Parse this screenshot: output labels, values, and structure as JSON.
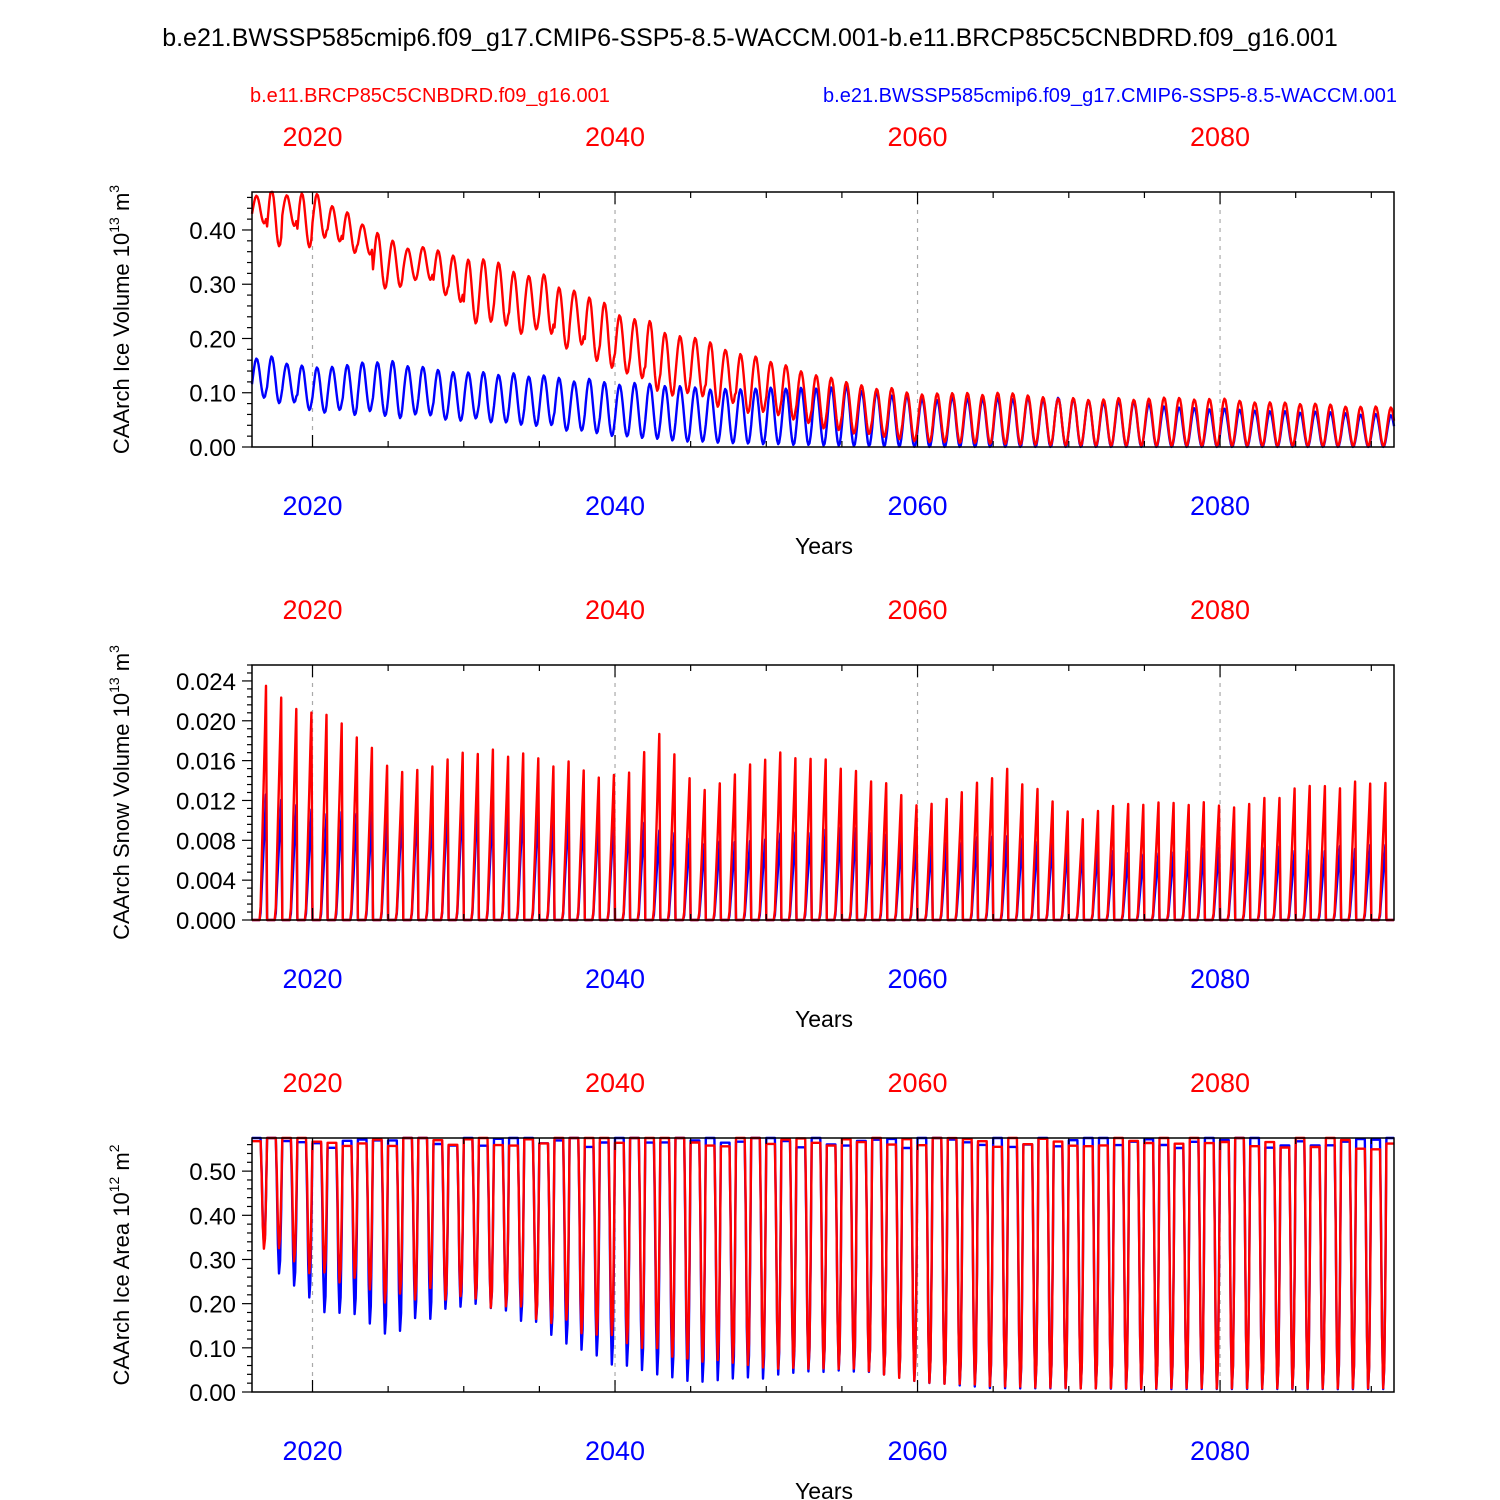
{
  "page": {
    "title": "b.e21.BWSSP585cmip6.f09_g17.CMIP6-SSP5-8.5-WACCM.001-b.e11.BRCP85C5CNBDRD.f09_g16.001"
  },
  "colors": {
    "series_a": "#ff0000",
    "series_b": "#0000ff",
    "axis": "#000000",
    "grid": "#aaaaaa"
  },
  "chart_data": [
    {
      "type": "line",
      "panel": "ice-volume",
      "top_axis_color": "red",
      "bottom_axis_color": "blue",
      "series_labels": [
        "b.e11.BRCP85C5CNBDRD.f09_g16.001",
        "b.e21.BWSSP585cmip6.f09_g17.CMIP6-SSP5-8.5-WACCM.001"
      ],
      "ylabel": "CAArch Ice Volume 10",
      "ylabel_exp": "13",
      "ylabel_unit": "m",
      "ylabel_unit_exp": "3",
      "xlabel": "Years",
      "xlim": [
        2016,
        2091.5
      ],
      "ylim": [
        0,
        0.47
      ],
      "xticks": [
        2020,
        2040,
        2060,
        2080
      ],
      "xtick_labels": [
        "2020",
        "2040",
        "2060",
        "2080"
      ],
      "yticks": [
        0,
        0.1,
        0.2,
        0.3,
        0.4
      ],
      "ytick_labels": [
        "0.00",
        "0.10",
        "0.20",
        "0.30",
        "0.40"
      ],
      "grid": "vertical dashed at major x ticks",
      "series": [
        {
          "name": "b.e11.BRCP85C5CNBDRD.f09_g16.001",
          "color": "red",
          "years": [
            2016,
            2020,
            2025,
            2030,
            2035,
            2040,
            2045,
            2050,
            2055,
            2060,
            2065,
            2070,
            2075,
            2080,
            2085,
            2091
          ],
          "annual_max": [
            0.47,
            0.46,
            0.39,
            0.35,
            0.32,
            0.25,
            0.2,
            0.16,
            0.12,
            0.1,
            0.1,
            0.09,
            0.09,
            0.09,
            0.08,
            0.075
          ],
          "annual_min": [
            0.4,
            0.38,
            0.31,
            0.26,
            0.21,
            0.14,
            0.09,
            0.06,
            0.03,
            0.01,
            0.005,
            0.003,
            0.002,
            0.002,
            0.002,
            0.002
          ]
        },
        {
          "name": "b.e21.BWSSP585cmip6.f09_g17.CMIP6-SSP5-8.5-WACCM.001",
          "color": "blue",
          "years": [
            2016,
            2020,
            2025,
            2030,
            2035,
            2040,
            2045,
            2050,
            2055,
            2060,
            2065,
            2070,
            2075,
            2080,
            2085,
            2091
          ],
          "annual_max": [
            0.17,
            0.15,
            0.16,
            0.14,
            0.13,
            0.12,
            0.11,
            0.11,
            0.11,
            0.09,
            0.09,
            0.09,
            0.08,
            0.07,
            0.065,
            0.06
          ],
          "annual_min": [
            0.1,
            0.07,
            0.06,
            0.05,
            0.04,
            0.02,
            0.01,
            0.005,
            0.002,
            0.0,
            0.0,
            0.0,
            0.0,
            0.0,
            0.0,
            0.0
          ]
        }
      ]
    },
    {
      "type": "line",
      "panel": "snow-volume",
      "top_axis_color": "red",
      "bottom_axis_color": "blue",
      "ylabel": "CAArch Snow Volume 10",
      "ylabel_exp": "13",
      "ylabel_unit": "m",
      "ylabel_unit_exp": "3",
      "xlabel": "Years",
      "xlim": [
        2016,
        2091.5
      ],
      "ylim": [
        0,
        0.0256
      ],
      "xticks": [
        2020,
        2040,
        2060,
        2080
      ],
      "xtick_labels": [
        "2020",
        "2040",
        "2060",
        "2080"
      ],
      "yticks": [
        0,
        0.004,
        0.008,
        0.012,
        0.016,
        0.02,
        0.024
      ],
      "ytick_labels": [
        "0.000",
        "0.004",
        "0.008",
        "0.012",
        "0.016",
        "0.020",
        "0.024"
      ],
      "grid": "vertical dashed at major x ticks",
      "series": [
        {
          "name": "b.e11.BRCP85C5CNBDRD.f09_g16.001",
          "color": "red",
          "years": [
            2016,
            2018,
            2020,
            2025,
            2030,
            2035,
            2040,
            2042,
            2045,
            2050,
            2055,
            2060,
            2065,
            2070,
            2075,
            2080,
            2085,
            2090
          ],
          "annual_max": [
            0.026,
            0.023,
            0.0225,
            0.016,
            0.018,
            0.017,
            0.015,
            0.02,
            0.014,
            0.018,
            0.016,
            0.012,
            0.016,
            0.011,
            0.013,
            0.012,
            0.014,
            0.015
          ],
          "annual_min": [
            0,
            0,
            0,
            0,
            0,
            0,
            0,
            0,
            0,
            0,
            0,
            0,
            0,
            0,
            0,
            0,
            0,
            0
          ]
        },
        {
          "name": "b.e21.BWSSP585cmip6.f09_g17.CMIP6-SSP5-8.5-WACCM.001",
          "color": "blue",
          "years": [
            2016,
            2020,
            2025,
            2030,
            2035,
            2040,
            2045,
            2050,
            2055,
            2060,
            2065,
            2070,
            2075,
            2080,
            2085,
            2090
          ],
          "annual_max": [
            0.014,
            0.011,
            0.012,
            0.013,
            0.012,
            0.011,
            0.008,
            0.009,
            0.01,
            0.008,
            0.009,
            0.008,
            0.007,
            0.008,
            0.0075,
            0.008
          ],
          "annual_min": [
            0,
            0,
            0,
            0,
            0,
            0,
            0,
            0,
            0,
            0,
            0,
            0,
            0,
            0,
            0,
            0
          ]
        }
      ]
    },
    {
      "type": "line",
      "panel": "ice-area",
      "top_axis_color": "red",
      "bottom_axis_color": "blue",
      "ylabel": "CAArch Ice Area 10",
      "ylabel_exp": "12",
      "ylabel_unit": "m",
      "ylabel_unit_exp": "2",
      "xlabel": "Years",
      "xlim": [
        2016,
        2091.5
      ],
      "ylim": [
        0,
        0.575
      ],
      "xticks": [
        2020,
        2040,
        2060,
        2080
      ],
      "xtick_labels": [
        "2020",
        "2040",
        "2060",
        "2080"
      ],
      "yticks": [
        0,
        0.1,
        0.2,
        0.3,
        0.4,
        0.5
      ],
      "ytick_labels": [
        "0.00",
        "0.10",
        "0.20",
        "0.30",
        "0.40",
        "0.50"
      ],
      "grid": "vertical dashed at major x ticks",
      "series": [
        {
          "name": "b.e11.BRCP85C5CNBDRD.f09_g16.001",
          "color": "red",
          "years": [
            2016,
            2020,
            2025,
            2030,
            2035,
            2040,
            2045,
            2050,
            2055,
            2060,
            2065,
            2070,
            2075,
            2080,
            2085,
            2091
          ],
          "annual_max": [
            0.575,
            0.575,
            0.575,
            0.575,
            0.575,
            0.575,
            0.575,
            0.575,
            0.575,
            0.575,
            0.575,
            0.575,
            0.575,
            0.575,
            0.575,
            0.57
          ],
          "annual_min": [
            0.34,
            0.25,
            0.22,
            0.22,
            0.17,
            0.12,
            0.07,
            0.05,
            0.05,
            0.02,
            0.01,
            0.005,
            0.005,
            0.005,
            0.005,
            0.005
          ]
        },
        {
          "name": "b.e21.BWSSP585cmip6.f09_g17.CMIP6-SSP5-8.5-WACCM.001",
          "color": "blue",
          "years": [
            2016,
            2020,
            2025,
            2030,
            2035,
            2040,
            2045,
            2050,
            2055,
            2060,
            2065,
            2070,
            2075,
            2080,
            2085,
            2091
          ],
          "annual_max": [
            0.575,
            0.575,
            0.575,
            0.575,
            0.575,
            0.575,
            0.575,
            0.575,
            0.575,
            0.575,
            0.575,
            0.575,
            0.575,
            0.575,
            0.575,
            0.57
          ],
          "annual_min": [
            0.34,
            0.19,
            0.14,
            0.2,
            0.14,
            0.06,
            0.02,
            0.03,
            0.05,
            0.02,
            0.005,
            0.005,
            0.003,
            0.003,
            0.003,
            0.003
          ]
        }
      ]
    }
  ]
}
